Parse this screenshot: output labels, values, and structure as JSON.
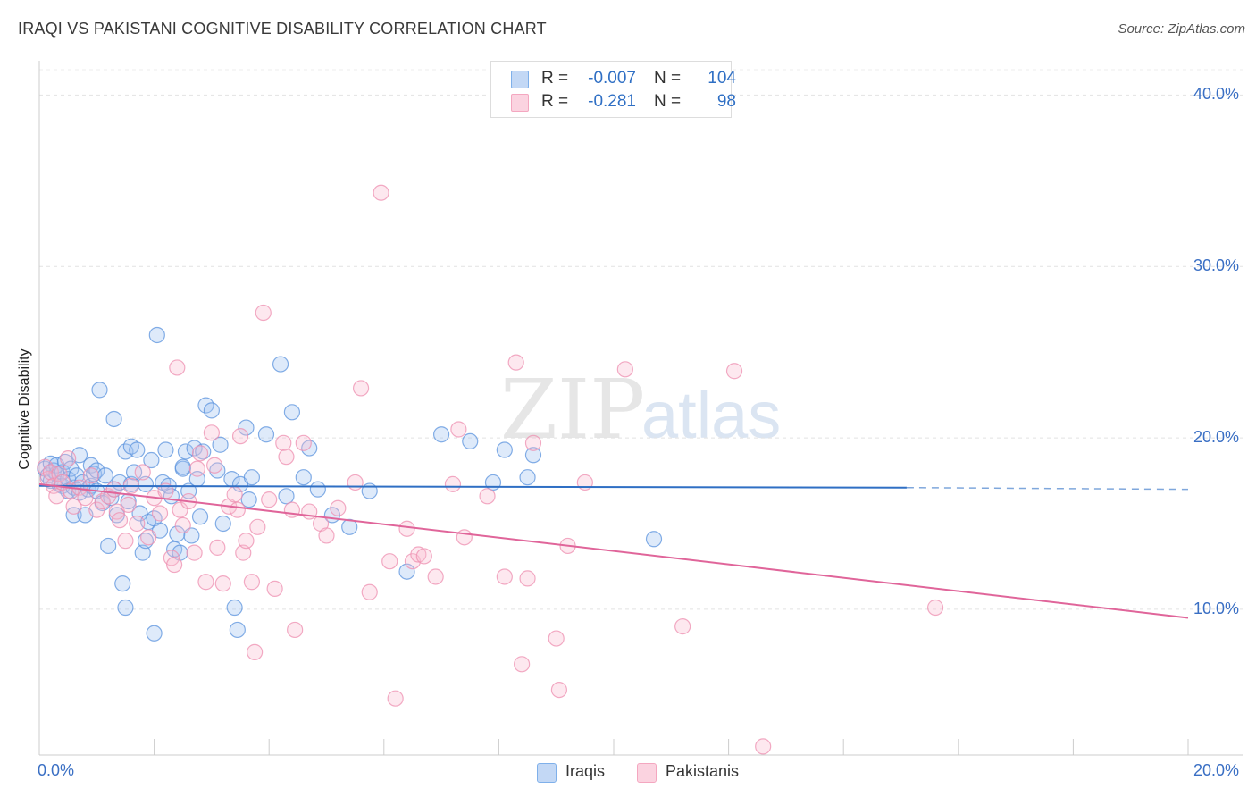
{
  "title": "IRAQI VS PAKISTANI COGNITIVE DISABILITY CORRELATION CHART",
  "source": "Source: ZipAtlas.com",
  "watermark": {
    "zip": "ZIP",
    "atlas": "atlas"
  },
  "legend": {
    "rows": [
      {
        "r_label": "R =",
        "r_value": "-0.007",
        "n_label": "N =",
        "n_value": "104",
        "color": "#7fb0ea"
      },
      {
        "r_label": "R =",
        "r_value": "-0.281",
        "n_label": "N =",
        "n_value": "98",
        "color": "#f4a7c0"
      }
    ]
  },
  "bottom_legend": [
    "Iraqis",
    "Pakistanis"
  ],
  "chart_data": {
    "type": "scatter",
    "title": "IRAQI VS PAKISTANI COGNITIVE DISABILITY CORRELATION CHART",
    "ylabel": "Cognitive Disability",
    "xlabel": "",
    "xlim": [
      0,
      20
    ],
    "ylim": [
      1.5,
      42
    ],
    "x_tick_labels": [
      "0.0%",
      "20.0%"
    ],
    "y_ticks": [
      10,
      20,
      30,
      40
    ],
    "y_tick_labels": [
      "10.0%",
      "20.0%",
      "30.0%",
      "40.0%"
    ],
    "grid": true,
    "legend_position": "top-center",
    "series": [
      {
        "name": "Iraqis",
        "color": "#5b93dd",
        "trend": {
          "x0": 0,
          "y0": 17.2,
          "x1": 15.1,
          "y1": 17.1,
          "dashed_to_x": 20,
          "dashed_to_y": 17.0
        },
        "points": [
          [
            0.1,
            18.2
          ],
          [
            0.15,
            17.8
          ],
          [
            0.2,
            18.5
          ],
          [
            0.2,
            17.5
          ],
          [
            0.25,
            18.1
          ],
          [
            0.3,
            17.9
          ],
          [
            0.3,
            18.4
          ],
          [
            0.35,
            17.3
          ],
          [
            0.4,
            18.0
          ],
          [
            0.4,
            17.2
          ],
          [
            0.45,
            18.6
          ],
          [
            0.5,
            17.6
          ],
          [
            0.5,
            16.9
          ],
          [
            0.55,
            18.2
          ],
          [
            0.6,
            17.1
          ],
          [
            0.6,
            15.5
          ],
          [
            0.65,
            17.8
          ],
          [
            0.7,
            19.0
          ],
          [
            0.7,
            16.8
          ],
          [
            0.75,
            17.4
          ],
          [
            0.8,
            15.5
          ],
          [
            0.85,
            17.0
          ],
          [
            0.9,
            18.4
          ],
          [
            0.9,
            17.2
          ],
          [
            0.95,
            17.9
          ],
          [
            1.0,
            18.1
          ],
          [
            1.0,
            16.9
          ],
          [
            1.05,
            22.8
          ],
          [
            1.1,
            16.2
          ],
          [
            1.15,
            17.8
          ],
          [
            1.2,
            13.7
          ],
          [
            1.25,
            16.5
          ],
          [
            1.3,
            21.1
          ],
          [
            1.3,
            17.0
          ],
          [
            1.35,
            15.5
          ],
          [
            1.4,
            17.4
          ],
          [
            1.45,
            11.5
          ],
          [
            1.5,
            10.1
          ],
          [
            1.5,
            19.2
          ],
          [
            1.55,
            16.3
          ],
          [
            1.6,
            17.3
          ],
          [
            1.6,
            19.5
          ],
          [
            1.65,
            18.0
          ],
          [
            1.7,
            19.3
          ],
          [
            1.75,
            15.6
          ],
          [
            1.8,
            13.3
          ],
          [
            1.85,
            17.3
          ],
          [
            1.85,
            14.0
          ],
          [
            1.9,
            15.1
          ],
          [
            1.95,
            18.7
          ],
          [
            2.0,
            8.6
          ],
          [
            2.0,
            15.3
          ],
          [
            2.05,
            26.0
          ],
          [
            2.1,
            14.6
          ],
          [
            2.15,
            17.4
          ],
          [
            2.2,
            19.3
          ],
          [
            2.25,
            17.2
          ],
          [
            2.3,
            16.6
          ],
          [
            2.35,
            13.5
          ],
          [
            2.4,
            14.4
          ],
          [
            2.45,
            13.3
          ],
          [
            2.5,
            18.2
          ],
          [
            2.5,
            18.3
          ],
          [
            2.55,
            19.2
          ],
          [
            2.6,
            16.9
          ],
          [
            2.65,
            14.3
          ],
          [
            2.7,
            19.4
          ],
          [
            2.75,
            17.6
          ],
          [
            2.8,
            15.4
          ],
          [
            2.85,
            19.2
          ],
          [
            2.9,
            21.9
          ],
          [
            3.0,
            21.6
          ],
          [
            3.1,
            18.1
          ],
          [
            3.15,
            19.6
          ],
          [
            3.2,
            15.0
          ],
          [
            3.35,
            17.6
          ],
          [
            3.4,
            10.1
          ],
          [
            3.45,
            8.8
          ],
          [
            3.5,
            17.3
          ],
          [
            3.6,
            20.6
          ],
          [
            3.65,
            16.4
          ],
          [
            3.7,
            17.7
          ],
          [
            3.95,
            20.2
          ],
          [
            4.2,
            24.3
          ],
          [
            4.3,
            16.6
          ],
          [
            4.4,
            21.5
          ],
          [
            4.6,
            17.7
          ],
          [
            4.7,
            19.4
          ],
          [
            4.85,
            17.0
          ],
          [
            5.1,
            15.5
          ],
          [
            5.4,
            14.8
          ],
          [
            5.75,
            16.9
          ],
          [
            6.4,
            12.2
          ],
          [
            7.0,
            20.2
          ],
          [
            7.5,
            19.8
          ],
          [
            7.9,
            17.4
          ],
          [
            8.1,
            19.3
          ],
          [
            8.5,
            17.7
          ],
          [
            8.6,
            19.0
          ],
          [
            10.7,
            14.1
          ]
        ]
      },
      {
        "name": "Pakistanis",
        "color": "#ee8fb0",
        "trend": {
          "x0": 0,
          "y0": 17.3,
          "x1": 20,
          "y1": 9.5
        },
        "points": [
          [
            0.1,
            18.3
          ],
          [
            0.15,
            17.6
          ],
          [
            0.2,
            18.0
          ],
          [
            0.25,
            17.2
          ],
          [
            0.3,
            16.6
          ],
          [
            0.35,
            17.9
          ],
          [
            0.4,
            17.4
          ],
          [
            0.5,
            18.8
          ],
          [
            0.55,
            16.9
          ],
          [
            0.6,
            16.0
          ],
          [
            0.7,
            17.1
          ],
          [
            0.8,
            16.5
          ],
          [
            0.9,
            17.8
          ],
          [
            1.0,
            15.8
          ],
          [
            1.1,
            16.3
          ],
          [
            1.2,
            16.6
          ],
          [
            1.3,
            17.0
          ],
          [
            1.35,
            15.7
          ],
          [
            1.4,
            15.2
          ],
          [
            1.5,
            14.0
          ],
          [
            1.55,
            16.1
          ],
          [
            1.6,
            17.2
          ],
          [
            1.7,
            15.0
          ],
          [
            1.8,
            18.0
          ],
          [
            1.9,
            14.2
          ],
          [
            2.0,
            16.5
          ],
          [
            2.1,
            15.6
          ],
          [
            2.2,
            16.9
          ],
          [
            2.3,
            13.0
          ],
          [
            2.35,
            12.6
          ],
          [
            2.4,
            24.1
          ],
          [
            2.45,
            15.8
          ],
          [
            2.5,
            14.9
          ],
          [
            2.6,
            16.3
          ],
          [
            2.7,
            13.3
          ],
          [
            2.75,
            18.2
          ],
          [
            2.8,
            19.1
          ],
          [
            2.9,
            11.6
          ],
          [
            3.0,
            20.3
          ],
          [
            3.05,
            18.4
          ],
          [
            3.1,
            13.6
          ],
          [
            3.2,
            11.5
          ],
          [
            3.3,
            16.0
          ],
          [
            3.4,
            16.7
          ],
          [
            3.45,
            15.8
          ],
          [
            3.5,
            20.1
          ],
          [
            3.55,
            13.3
          ],
          [
            3.6,
            14.0
          ],
          [
            3.7,
            11.6
          ],
          [
            3.75,
            7.5
          ],
          [
            3.8,
            14.8
          ],
          [
            3.9,
            27.3
          ],
          [
            4.0,
            16.4
          ],
          [
            4.1,
            11.2
          ],
          [
            4.25,
            19.7
          ],
          [
            4.3,
            18.9
          ],
          [
            4.4,
            15.8
          ],
          [
            4.45,
            8.8
          ],
          [
            4.6,
            19.7
          ],
          [
            4.7,
            15.7
          ],
          [
            4.9,
            15.0
          ],
          [
            5.0,
            14.3
          ],
          [
            5.2,
            15.9
          ],
          [
            5.5,
            17.4
          ],
          [
            5.6,
            22.9
          ],
          [
            5.75,
            11.0
          ],
          [
            5.95,
            34.3
          ],
          [
            6.1,
            12.8
          ],
          [
            6.2,
            4.8
          ],
          [
            6.4,
            14.7
          ],
          [
            6.5,
            12.8
          ],
          [
            6.6,
            13.2
          ],
          [
            6.7,
            13.1
          ],
          [
            6.9,
            11.9
          ],
          [
            7.2,
            17.3
          ],
          [
            7.3,
            20.5
          ],
          [
            7.4,
            14.2
          ],
          [
            7.8,
            16.6
          ],
          [
            8.1,
            11.9
          ],
          [
            8.3,
            24.4
          ],
          [
            8.4,
            6.8
          ],
          [
            8.5,
            11.8
          ],
          [
            8.6,
            19.7
          ],
          [
            9.0,
            8.3
          ],
          [
            9.05,
            5.3
          ],
          [
            9.2,
            13.7
          ],
          [
            9.5,
            17.4
          ],
          [
            10.2,
            24.0
          ],
          [
            11.2,
            9.0
          ],
          [
            12.1,
            23.9
          ],
          [
            12.6,
            2.0
          ],
          [
            15.6,
            10.1
          ]
        ]
      }
    ]
  }
}
